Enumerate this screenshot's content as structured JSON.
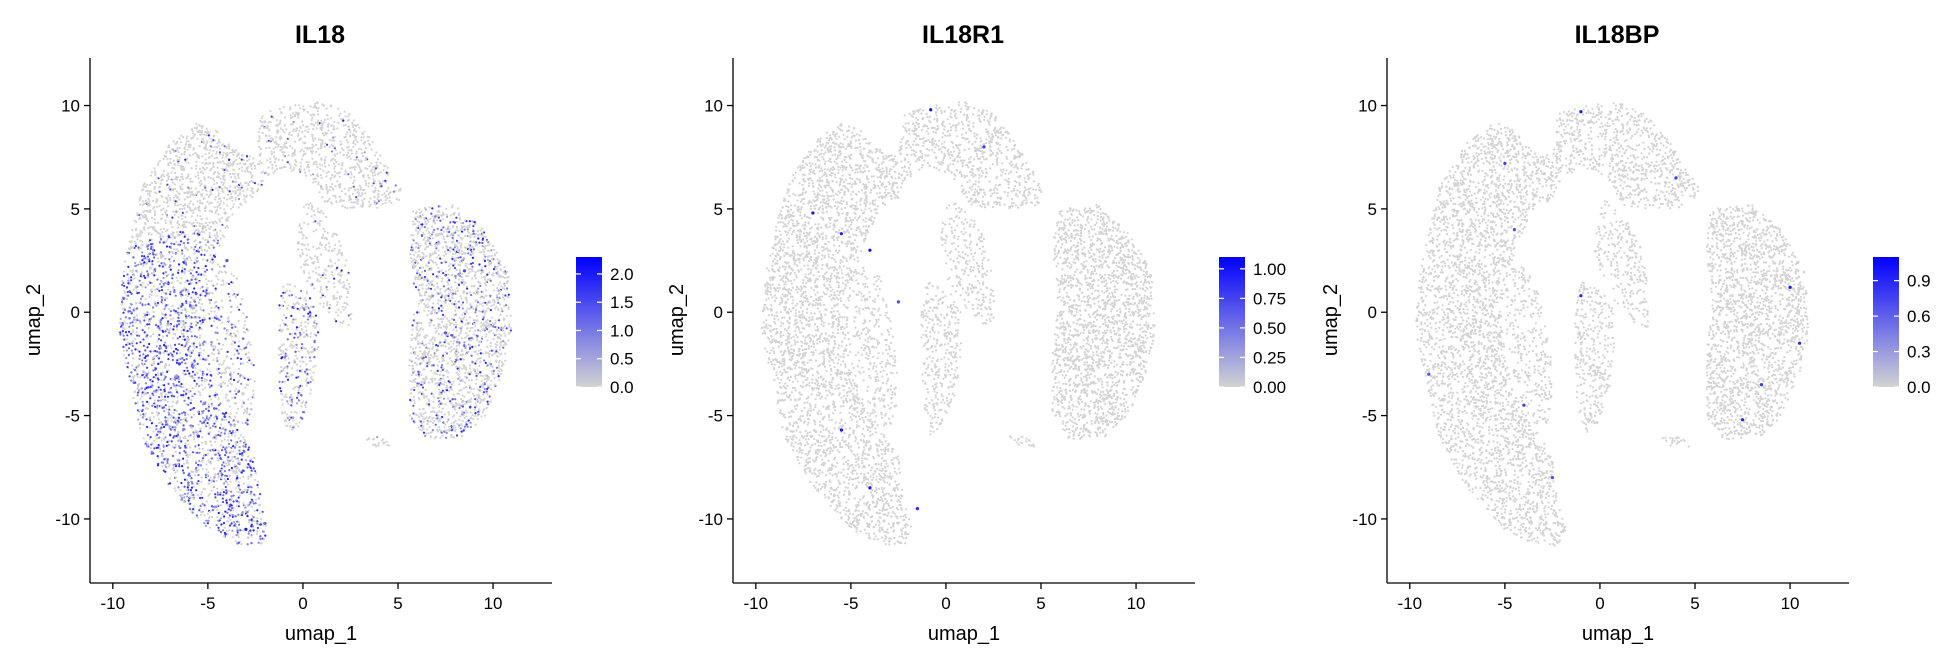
{
  "chart_data": [
    {
      "type": "scatter",
      "title": "IL18",
      "xlabel": "umap_1",
      "ylabel": "umap_2",
      "xlim": [
        -11.2,
        13.1
      ],
      "ylim": [
        -13.1,
        12.3
      ],
      "x_ticks": [
        -10,
        -5,
        0,
        5,
        10
      ],
      "y_ticks": [
        -10,
        -5,
        0,
        5,
        10
      ],
      "x_tick_labels": [
        "-10",
        "-5",
        "0",
        "5",
        "10"
      ],
      "y_tick_labels": [
        "-10",
        "-5",
        "0",
        "5",
        "10"
      ],
      "grid": false,
      "legend_position": "right",
      "color_scale": {
        "low": "#d3d3d3",
        "high": "#0000ff",
        "min": 0,
        "max": 2.3
      },
      "legend_ticks": [
        0.0,
        0.5,
        1.0,
        1.5,
        2.0
      ],
      "legend_tick_labels": [
        "0.0",
        "0.5",
        "1.0",
        "1.5",
        "2.0"
      ],
      "expression_level": {
        "left_arm": 0.55,
        "right_cluster": 0.22,
        "upper_region": 0.05,
        "inner_strip": 0.3
      },
      "highlighted_points": [
        {
          "x": -3.0,
          "y": -10.5,
          "v": 2.1
        },
        {
          "x": -5.5,
          "y": -6.0,
          "v": 1.8
        },
        {
          "x": -6.5,
          "y": -2.5,
          "v": 1.6
        },
        {
          "x": -4.0,
          "y": 2.5,
          "v": 1.4
        },
        {
          "x": 8.5,
          "y": 2.0,
          "v": 1.5
        },
        {
          "x": 7.5,
          "y": -1.0,
          "v": 1.3
        }
      ]
    },
    {
      "type": "scatter",
      "title": "IL18R1",
      "xlabel": "umap_1",
      "ylabel": "umap_2",
      "xlim": [
        -11.2,
        13.1
      ],
      "ylim": [
        -13.1,
        12.3
      ],
      "x_ticks": [
        -10,
        -5,
        0,
        5,
        10
      ],
      "y_ticks": [
        -10,
        -5,
        0,
        5,
        10
      ],
      "x_tick_labels": [
        "-10",
        "-5",
        "0",
        "5",
        "10"
      ],
      "y_tick_labels": [
        "-10",
        "-5",
        "0",
        "5",
        "10"
      ],
      "grid": false,
      "legend_position": "right",
      "color_scale": {
        "low": "#d3d3d3",
        "high": "#0000ff",
        "min": 0,
        "max": 1.1
      },
      "legend_ticks": [
        0.0,
        0.25,
        0.5,
        0.75,
        1.0
      ],
      "legend_tick_labels": [
        "0.00",
        "0.25",
        "0.50",
        "0.75",
        "1.00"
      ],
      "expression_level": {
        "left_arm": 0.0,
        "right_cluster": 0.0,
        "upper_region": 0.0,
        "inner_strip": 0.0
      },
      "highlighted_points": [
        {
          "x": -7.0,
          "y": 4.8,
          "v": 1.0
        },
        {
          "x": -5.5,
          "y": 3.8,
          "v": 0.9
        },
        {
          "x": -4.0,
          "y": 3.0,
          "v": 1.0
        },
        {
          "x": -5.5,
          "y": -5.7,
          "v": 1.0
        },
        {
          "x": -4.0,
          "y": -8.5,
          "v": 1.0
        },
        {
          "x": -1.5,
          "y": -9.5,
          "v": 0.9
        },
        {
          "x": -0.8,
          "y": 9.8,
          "v": 1.0
        },
        {
          "x": 2.0,
          "y": 8.0,
          "v": 0.8
        },
        {
          "x": -2.5,
          "y": 0.5,
          "v": 0.7
        }
      ]
    },
    {
      "type": "scatter",
      "title": "IL18BP",
      "xlabel": "umap_1",
      "ylabel": "umap_2",
      "xlim": [
        -11.2,
        13.1
      ],
      "ylim": [
        -13.1,
        12.3
      ],
      "x_ticks": [
        -10,
        -5,
        0,
        5,
        10
      ],
      "y_ticks": [
        -10,
        -5,
        0,
        5,
        10
      ],
      "x_tick_labels": [
        "-10",
        "-5",
        "0",
        "5",
        "10"
      ],
      "y_tick_labels": [
        "-10",
        "-5",
        "0",
        "5",
        "10"
      ],
      "grid": false,
      "legend_position": "right",
      "color_scale": {
        "low": "#d3d3d3",
        "high": "#0000ff",
        "min": 0,
        "max": 1.1
      },
      "legend_ticks": [
        0.0,
        0.3,
        0.6,
        0.9
      ],
      "legend_tick_labels": [
        "0.0",
        "0.3",
        "0.6",
        "0.9"
      ],
      "expression_level": {
        "left_arm": 0.0,
        "right_cluster": 0.0,
        "upper_region": 0.0,
        "inner_strip": 0.0
      },
      "highlighted_points": [
        {
          "x": -1.0,
          "y": 9.7,
          "v": 1.0
        },
        {
          "x": -5.0,
          "y": 7.2,
          "v": 0.8
        },
        {
          "x": 4.0,
          "y": 6.5,
          "v": 0.8
        },
        {
          "x": -4.5,
          "y": 4.0,
          "v": 0.7
        },
        {
          "x": -1.0,
          "y": 0.8,
          "v": 0.9
        },
        {
          "x": 10.0,
          "y": 1.2,
          "v": 1.0
        },
        {
          "x": 10.5,
          "y": -1.5,
          "v": 0.9
        },
        {
          "x": 8.5,
          "y": -3.5,
          "v": 0.8
        },
        {
          "x": 7.5,
          "y": -5.2,
          "v": 0.9
        },
        {
          "x": -4.0,
          "y": -4.5,
          "v": 0.8
        },
        {
          "x": -2.5,
          "y": -8.0,
          "v": 0.7
        },
        {
          "x": -9.0,
          "y": -3.0,
          "v": 0.7
        }
      ]
    }
  ]
}
